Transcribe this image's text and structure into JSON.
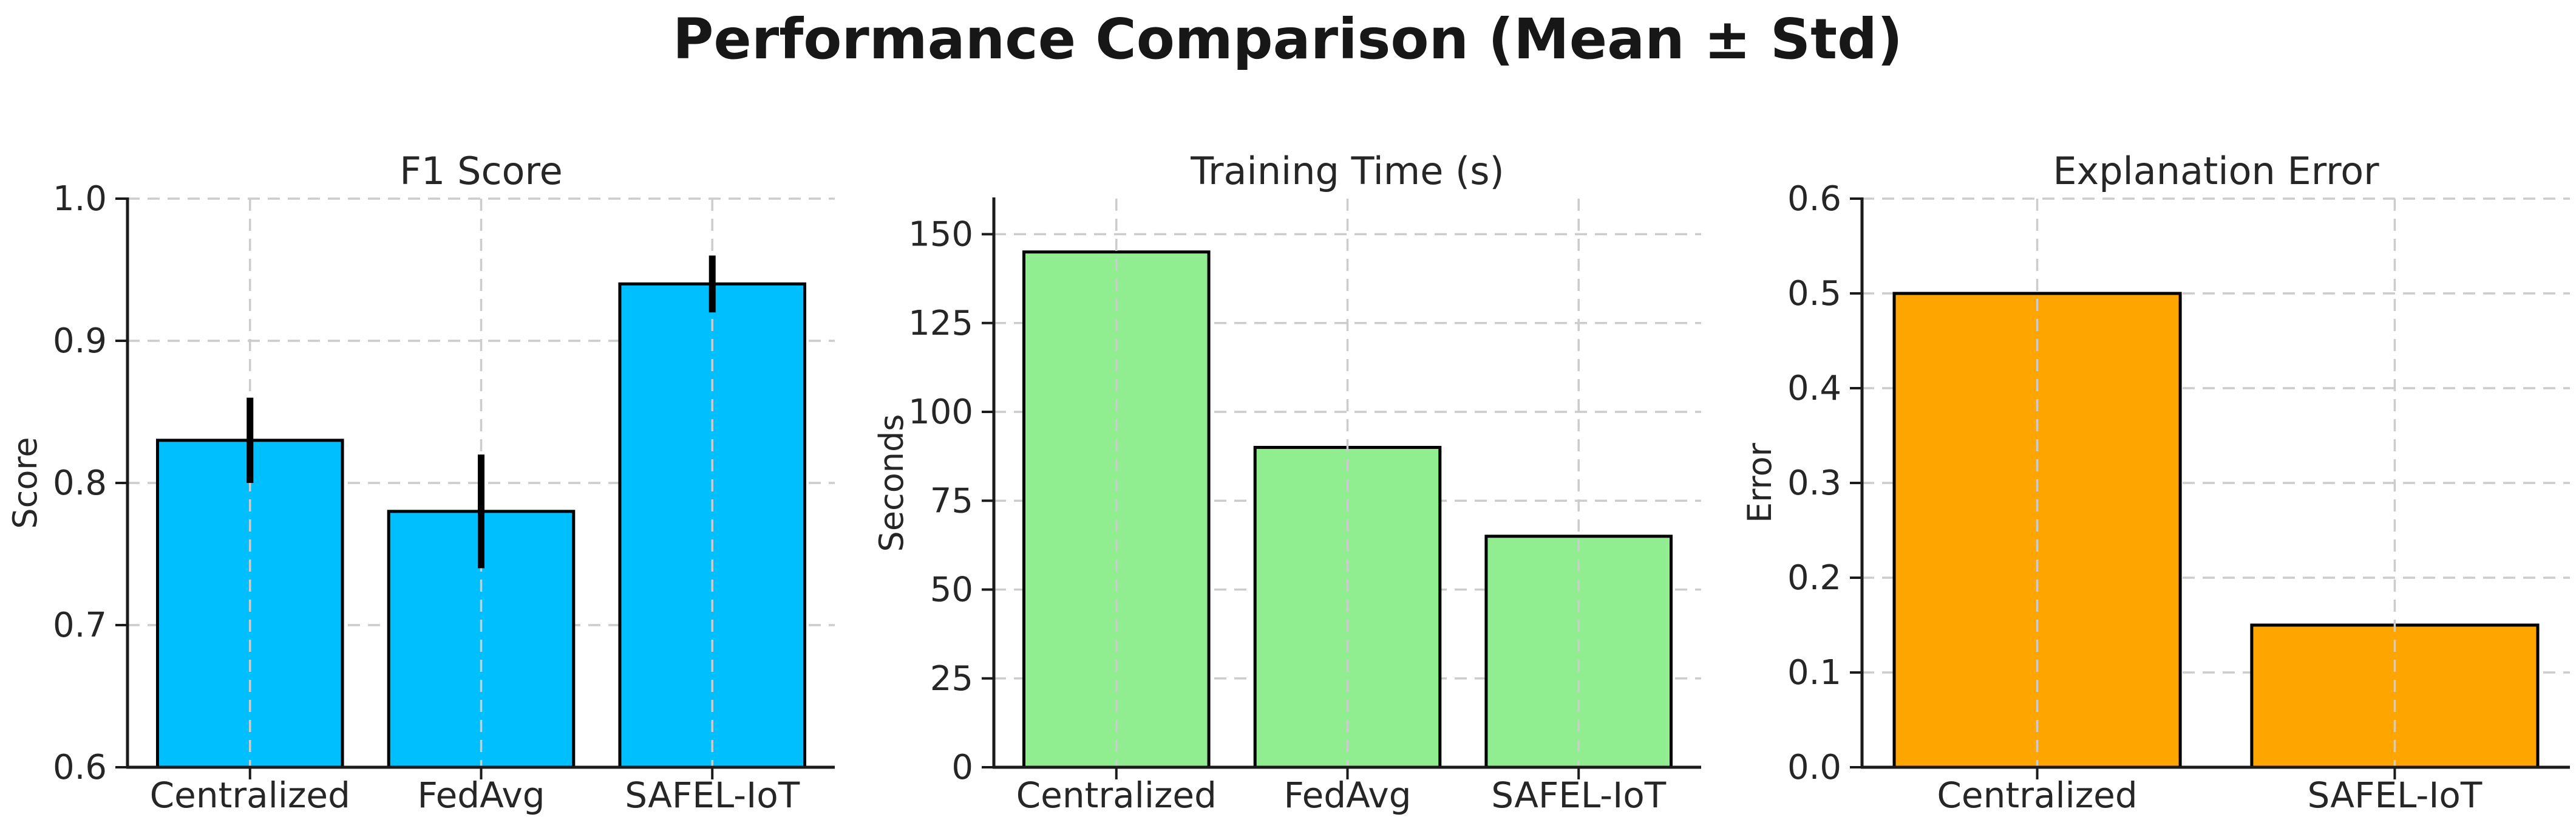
{
  "figure": {
    "title": "Performance Comparison (Mean ± Std)",
    "background": "#ffffff",
    "text_color": "#262626",
    "grid_color": "#cccccc",
    "bar_edge_color": "#000000"
  },
  "chart_data": [
    {
      "type": "bar",
      "title": "F1 Score",
      "ylabel": "Score",
      "categories": [
        "Centralized",
        "FedAvg",
        "SAFEL-IoT"
      ],
      "values": [
        0.83,
        0.78,
        0.94
      ],
      "std": [
        0.03,
        0.04,
        0.02
      ],
      "bar_color": "#00BFFF",
      "ylim": [
        0.6,
        1.0
      ],
      "yticks": [
        0.6,
        0.7,
        0.8,
        0.9,
        1.0
      ],
      "ytick_decimals": 1,
      "grid": true,
      "legend": false
    },
    {
      "type": "bar",
      "title": "Training Time (s)",
      "ylabel": "Seconds",
      "categories": [
        "Centralized",
        "FedAvg",
        "SAFEL-IoT"
      ],
      "values": [
        145,
        90,
        65
      ],
      "bar_color": "#90EE90",
      "ylim": [
        0,
        160
      ],
      "yticks": [
        0,
        25,
        50,
        75,
        100,
        125,
        150
      ],
      "ytick_decimals": 0,
      "grid": true,
      "legend": false
    },
    {
      "type": "bar",
      "title": "Explanation Error",
      "ylabel": "Error",
      "categories": [
        "Centralized",
        "SAFEL-IoT"
      ],
      "values": [
        0.5,
        0.15
      ],
      "bar_color": "#FFA500",
      "ylim": [
        0,
        0.6
      ],
      "yticks": [
        0.0,
        0.1,
        0.2,
        0.3,
        0.4,
        0.5,
        0.6
      ],
      "ytick_decimals": 1,
      "grid": true,
      "legend": false
    }
  ]
}
